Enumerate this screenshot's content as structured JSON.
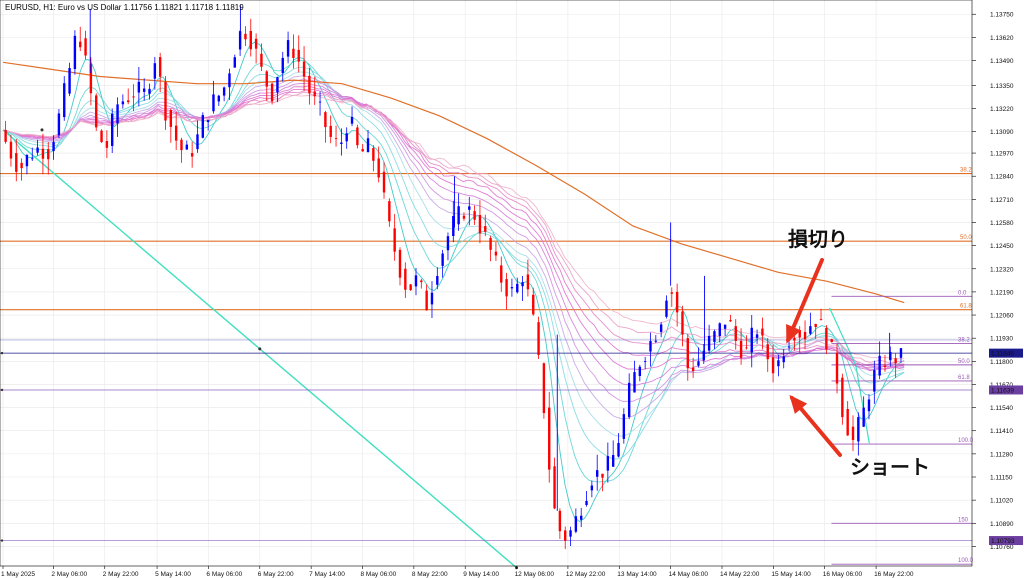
{
  "header": {
    "title": "EURUSD, H1:  Euro vs US Dollar  1.11756 1.11821 1.11718 1.11819"
  },
  "chart_data": {
    "type": "candlestick",
    "symbol": "EURUSD",
    "timeframe": "H1",
    "ylim": [
      1.1065,
      1.1383
    ],
    "xlim": [
      0,
      100
    ],
    "y_ticks": [
      1.1375,
      1.1362,
      1.1349,
      1.1335,
      1.1322,
      1.1309,
      1.1297,
      1.1284,
      1.1271,
      1.1258,
      1.1245,
      1.1232,
      1.1219,
      1.1206,
      1.1193,
      1.118,
      1.1167,
      1.1154,
      1.1141,
      1.1128,
      1.1115,
      1.1102,
      1.1089,
      1.1076
    ],
    "y_tick_labels": [
      "1.13750",
      "1.13620",
      "1.13490",
      "1.13350",
      "1.13220",
      "1.13090",
      "1.12970",
      "1.12840",
      "1.12710",
      "1.12580",
      "1.12450",
      "1.12320",
      "1.12190",
      "1.12060",
      "1.11930",
      "1.11800",
      "1.11670",
      "1.11540",
      "1.11410",
      "1.11280",
      "1.11150",
      "1.11020",
      "1.10890",
      "1.10760"
    ],
    "x_ticks": [
      {
        "x": 0,
        "label": "1 May 2025"
      },
      {
        "x": 5.2,
        "label": "2 May 06:00"
      },
      {
        "x": 10.5,
        "label": "2 May 22:00"
      },
      {
        "x": 15.9,
        "label": "5 May 14:00"
      },
      {
        "x": 21.2,
        "label": "6 May 06:00"
      },
      {
        "x": 26.5,
        "label": "6 May 22:00"
      },
      {
        "x": 31.8,
        "label": "7 May 14:00"
      },
      {
        "x": 37.1,
        "label": "8 May 06:00"
      },
      {
        "x": 42.4,
        "label": "8 May 22:00"
      },
      {
        "x": 47.7,
        "label": "9 May 14:00"
      },
      {
        "x": 53.0,
        "label": "12 May 06:00"
      },
      {
        "x": 58.3,
        "label": "12 May 22:00"
      },
      {
        "x": 63.6,
        "label": "13 May 14:00"
      },
      {
        "x": 68.9,
        "label": "14 May 06:00"
      },
      {
        "x": 74.2,
        "label": "14 May 22:00"
      },
      {
        "x": 79.5,
        "label": "15 May 14:00"
      },
      {
        "x": 84.8,
        "label": "16 May 06:00"
      },
      {
        "x": 90.1,
        "label": "16 May 22:00"
      }
    ],
    "price_path": [
      [
        0,
        1.131
      ],
      [
        1,
        1.1298
      ],
      [
        2,
        1.1288
      ],
      [
        3,
        1.1296
      ],
      [
        4,
        1.13
      ],
      [
        5,
        1.1298
      ],
      [
        6,
        1.1316
      ],
      [
        7,
        1.134
      ],
      [
        8,
        1.1368
      ],
      [
        9,
        1.1342
      ],
      [
        10,
        1.1306
      ],
      [
        11,
        1.1301
      ],
      [
        12,
        1.1324
      ],
      [
        13,
        1.1328
      ],
      [
        14,
        1.1332
      ],
      [
        15,
        1.133
      ],
      [
        16,
        1.1352
      ],
      [
        17,
        1.1322
      ],
      [
        18,
        1.1306
      ],
      [
        19,
        1.1296
      ],
      [
        20,
        1.13
      ],
      [
        21,
        1.1316
      ],
      [
        22,
        1.1326
      ],
      [
        23,
        1.1332
      ],
      [
        24,
        1.1352
      ],
      [
        25,
        1.1368
      ],
      [
        26,
        1.136
      ],
      [
        27,
        1.1342
      ],
      [
        28,
        1.133
      ],
      [
        29,
        1.135
      ],
      [
        30,
        1.1358
      ],
      [
        31,
        1.1346
      ],
      [
        32,
        1.133
      ],
      [
        33,
        1.132
      ],
      [
        34,
        1.1306
      ],
      [
        35,
        1.13
      ],
      [
        36,
        1.1318
      ],
      [
        37,
        1.1296
      ],
      [
        38,
        1.13
      ],
      [
        39,
        1.1288
      ],
      [
        40,
        1.1258
      ],
      [
        41,
        1.1236
      ],
      [
        42,
        1.122
      ],
      [
        43,
        1.1226
      ],
      [
        44,
        1.1212
      ],
      [
        45,
        1.1232
      ],
      [
        46,
        1.1248
      ],
      [
        47,
        1.126
      ],
      [
        48,
        1.1266
      ],
      [
        49,
        1.1262
      ],
      [
        50,
        1.125
      ],
      [
        51,
        1.1236
      ],
      [
        52,
        1.1222
      ],
      [
        53,
        1.1218
      ],
      [
        54,
        1.123
      ],
      [
        55,
        1.1202
      ],
      [
        56,
        1.116
      ],
      [
        57,
        1.11
      ],
      [
        58,
        1.108
      ],
      [
        59,
        1.1085
      ],
      [
        60,
        1.11
      ],
      [
        61,
        1.1115
      ],
      [
        62,
        1.1118
      ],
      [
        63,
        1.1122
      ],
      [
        64,
        1.114
      ],
      [
        65,
        1.1165
      ],
      [
        66,
        1.118
      ],
      [
        67,
        1.119
      ],
      [
        68,
        1.12
      ],
      [
        69,
        1.1225
      ],
      [
        70,
        1.1205
      ],
      [
        71,
        1.1175
      ],
      [
        72,
        1.118
      ],
      [
        73,
        1.119
      ],
      [
        74,
        1.1196
      ],
      [
        75,
        1.1205
      ],
      [
        76,
        1.119
      ],
      [
        77,
        1.1185
      ],
      [
        78,
        1.12
      ],
      [
        79,
        1.1184
      ],
      [
        80,
        1.1175
      ],
      [
        81,
        1.119
      ],
      [
        82,
        1.1198
      ],
      [
        83,
        1.1195
      ],
      [
        84,
        1.1205
      ],
      [
        85,
        1.1196
      ],
      [
        86,
        1.1182
      ],
      [
        87,
        1.115
      ],
      [
        88,
        1.1135
      ],
      [
        89,
        1.115
      ],
      [
        90,
        1.117
      ],
      [
        91,
        1.118
      ],
      [
        92,
        1.1182
      ]
    ],
    "ema_200": [
      [
        0,
        1.1348
      ],
      [
        5,
        1.1344
      ],
      [
        10,
        1.134
      ],
      [
        15,
        1.1338
      ],
      [
        20,
        1.1336
      ],
      [
        25,
        1.1336
      ],
      [
        30,
        1.1338
      ],
      [
        35,
        1.1336
      ],
      [
        40,
        1.1328
      ],
      [
        45,
        1.1318
      ],
      [
        50,
        1.1305
      ],
      [
        55,
        1.129
      ],
      [
        60,
        1.1274
      ],
      [
        65,
        1.1256
      ],
      [
        70,
        1.1246
      ],
      [
        75,
        1.1238
      ],
      [
        80,
        1.123
      ],
      [
        85,
        1.1225
      ],
      [
        90,
        1.1218
      ],
      [
        93,
        1.1213
      ]
    ],
    "trendline": [
      [
        0,
        1.131
      ],
      [
        53,
        1.1064
      ]
    ],
    "fibo_left": {
      "levels": [
        {
          "label": "38.2",
          "price": 1.12855
        },
        {
          "label": "50.0",
          "price": 1.12475
        },
        {
          "label": "61.8",
          "price": 1.1209
        }
      ]
    },
    "fibo_right": {
      "levels": [
        {
          "label": "0.0",
          "price": 1.12165
        },
        {
          "label": "38.2",
          "price": 1.119
        },
        {
          "label": "50.0",
          "price": 1.1178
        },
        {
          "label": "61.8",
          "price": 1.1169
        },
        {
          "label": "100.0",
          "price": 1.11335
        },
        {
          "label": "150",
          "price": 1.1089
        },
        {
          "label": "100.0",
          "price": 1.1066
        }
      ]
    },
    "price_tags": [
      {
        "label": "1.11846",
        "price": 1.11846,
        "color": "#1a1a8a"
      },
      {
        "label": "1.11639",
        "price": 1.11639,
        "color": "#6b3fa0"
      },
      {
        "label": "1.10793",
        "price": 1.10793,
        "color": "#6b3fa0"
      }
    ],
    "annotations": [
      {
        "text": "損切り",
        "role": "stop-loss"
      },
      {
        "text": "ショート",
        "role": "short"
      }
    ],
    "colors": {
      "bull": "#0000ff",
      "bear": "#ff0000",
      "fibo_left": "#e0702a",
      "fibo_right": "#9b59b6",
      "ema200": "#e0702a",
      "trendline": "#40e0c0",
      "arrow": "#e8321e"
    }
  }
}
